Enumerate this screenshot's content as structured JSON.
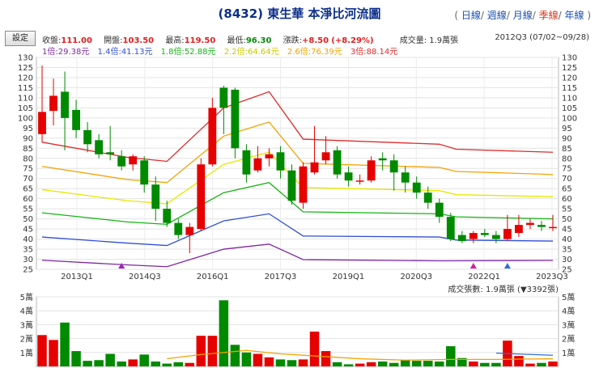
{
  "header": {
    "title": "(8432) 東生華 本淨比河流圖",
    "periods": [
      "日線",
      "週線",
      "月線",
      "季線",
      "年線"
    ],
    "active_period": "季線",
    "settings_label": "設定",
    "quote": {
      "close_label": "收盤:",
      "close": "111.00",
      "open_label": "開盤:",
      "open": "103.50",
      "high_label": "最高:",
      "high": "119.50",
      "low_label": "最低:",
      "low": "96.30",
      "change_label": "漲跌:",
      "change": "+8.50",
      "change_pct": "(+8.29%)",
      "volume_label": "成交量:",
      "volume": "1.9萬張"
    },
    "period_text": "2012Q3 (07/02~09/28)"
  },
  "colors": {
    "up": "#e60000",
    "down": "#008a00",
    "title": "#0c2f8a",
    "bands": [
      "#7d27a3",
      "#2f4fd6",
      "#13b513",
      "#e8e800",
      "#f5a200",
      "#e02b2b"
    ]
  },
  "chart_data": [
    {
      "type": "candlestick",
      "title": "本淨比河流圖",
      "x_tick_labels": [
        "2013Q1",
        "2014Q3",
        "2016Q1",
        "2017Q3",
        "2019Q1",
        "2020Q3",
        "2022Q1",
        "2023Q3"
      ],
      "y_ticks": [
        25,
        30,
        35,
        40,
        45,
        50,
        55,
        60,
        65,
        70,
        75,
        80,
        85,
        90,
        95,
        100,
        105,
        110,
        115,
        120,
        125,
        130
      ],
      "ylim": [
        25,
        130
      ],
      "band_legend": [
        "1倍:29.38元",
        "1.4倍:41.13元",
        "1.8倍:52.88元",
        "2.2倍:64.64元",
        "2.6倍:76.39元",
        "3倍:88.14元"
      ],
      "candles": [
        {
          "o": 92,
          "c": 103,
          "h": 126,
          "l": 88
        },
        {
          "o": 103.5,
          "c": 111,
          "h": 119.5,
          "l": 96.3
        },
        {
          "o": 113,
          "c": 100,
          "h": 123,
          "l": 84
        },
        {
          "o": 104,
          "c": 94,
          "h": 109,
          "l": 90
        },
        {
          "o": 94,
          "c": 87,
          "h": 98,
          "l": 83
        },
        {
          "o": 89,
          "c": 82,
          "h": 92,
          "l": 80
        },
        {
          "o": 83,
          "c": 82,
          "h": 96,
          "l": 79
        },
        {
          "o": 81,
          "c": 76,
          "h": 84,
          "l": 74
        },
        {
          "o": 77,
          "c": 81,
          "h": 82,
          "l": 74
        },
        {
          "o": 79,
          "c": 67,
          "h": 81,
          "l": 63
        },
        {
          "o": 67,
          "c": 55,
          "h": 71,
          "l": 49
        },
        {
          "o": 55,
          "c": 48,
          "h": 59,
          "l": 46
        },
        {
          "o": 48,
          "c": 42,
          "h": 50,
          "l": 40
        },
        {
          "o": 42,
          "c": 46,
          "h": 48,
          "l": 33
        },
        {
          "o": 45,
          "c": 77,
          "h": 80,
          "l": 44
        },
        {
          "o": 77,
          "c": 105,
          "h": 110,
          "l": 76
        },
        {
          "o": 115,
          "c": 105,
          "h": 116,
          "l": 92
        },
        {
          "o": 114,
          "c": 85,
          "h": 115,
          "l": 80
        },
        {
          "o": 84,
          "c": 72,
          "h": 87,
          "l": 68
        },
        {
          "o": 74,
          "c": 80,
          "h": 86,
          "l": 73
        },
        {
          "o": 80,
          "c": 82,
          "h": 85,
          "l": 76
        },
        {
          "o": 83,
          "c": 74,
          "h": 86,
          "l": 70
        },
        {
          "o": 74,
          "c": 59,
          "h": 77,
          "l": 57
        },
        {
          "o": 58,
          "c": 76,
          "h": 78,
          "l": 55
        },
        {
          "o": 73,
          "c": 78,
          "h": 96,
          "l": 72
        },
        {
          "o": 79,
          "c": 83,
          "h": 91,
          "l": 77
        },
        {
          "o": 84,
          "c": 72,
          "h": 86,
          "l": 70
        },
        {
          "o": 73,
          "c": 69,
          "h": 76,
          "l": 66
        },
        {
          "o": 69,
          "c": 69,
          "h": 72,
          "l": 67
        },
        {
          "o": 69,
          "c": 79,
          "h": 81,
          "l": 68
        },
        {
          "o": 80,
          "c": 79,
          "h": 83,
          "l": 74
        },
        {
          "o": 79,
          "c": 73,
          "h": 82,
          "l": 64
        },
        {
          "o": 73,
          "c": 68,
          "h": 76,
          "l": 63
        },
        {
          "o": 68,
          "c": 63,
          "h": 71,
          "l": 60
        },
        {
          "o": 63,
          "c": 58,
          "h": 66,
          "l": 55
        },
        {
          "o": 58,
          "c": 51,
          "h": 60,
          "l": 48
        },
        {
          "o": 51,
          "c": 40,
          "h": 53,
          "l": 39
        },
        {
          "o": 42,
          "c": 39,
          "h": 44,
          "l": 38
        },
        {
          "o": 40,
          "c": 43,
          "h": 44,
          "l": 38
        },
        {
          "o": 43,
          "c": 42,
          "h": 45,
          "l": 41
        },
        {
          "o": 42,
          "c": 40,
          "h": 44,
          "l": 38
        },
        {
          "o": 40,
          "c": 45,
          "h": 52,
          "l": 39
        },
        {
          "o": 43,
          "c": 47,
          "h": 52,
          "l": 41
        },
        {
          "o": 47,
          "c": 48,
          "h": 50,
          "l": 45
        },
        {
          "o": 47,
          "c": 46,
          "h": 49,
          "l": 44
        },
        {
          "o": 46,
          "c": 46,
          "h": 52,
          "l": 44
        }
      ],
      "bands": [
        {
          "multiple": "1倍",
          "points": [
            [
              0,
              29.5
            ],
            [
              7.5,
              27.2
            ],
            [
              11,
              26.3
            ],
            [
              16,
              35
            ],
            [
              20,
              37.5
            ],
            [
              23,
              29.8
            ],
            [
              35,
              29.2
            ],
            [
              45,
              29.4
            ]
          ]
        },
        {
          "multiple": "1.4倍",
          "points": [
            [
              0,
              41
            ],
            [
              7.5,
              38
            ],
            [
              11,
              36.8
            ],
            [
              16,
              49
            ],
            [
              20,
              52.5
            ],
            [
              23,
              41.5
            ],
            [
              35,
              41
            ],
            [
              36.5,
              39.5
            ],
            [
              45,
              39
            ]
          ]
        },
        {
          "multiple": "1.8倍",
          "points": [
            [
              0,
              53
            ],
            [
              7.5,
              48.5
            ],
            [
              11,
              47.3
            ],
            [
              16,
              63
            ],
            [
              20,
              68
            ],
            [
              23,
              53.5
            ],
            [
              35,
              52.5
            ],
            [
              36.5,
              51
            ],
            [
              45,
              50
            ]
          ]
        },
        {
          "multiple": "2.2倍",
          "points": [
            [
              0,
              64.5
            ],
            [
              7.5,
              59
            ],
            [
              11,
              57.5
            ],
            [
              16,
              77
            ],
            [
              20,
              83
            ],
            [
              23,
              65.5
            ],
            [
              35,
              64
            ],
            [
              36.5,
              62
            ],
            [
              45,
              61
            ]
          ]
        },
        {
          "multiple": "2.6倍",
          "points": [
            [
              0,
              76
            ],
            [
              7.5,
              69.5
            ],
            [
              11,
              68
            ],
            [
              16,
              91
            ],
            [
              20,
              98
            ],
            [
              23,
              77.5
            ],
            [
              35,
              75.5
            ],
            [
              36.5,
              73.5
            ],
            [
              45,
              72
            ]
          ]
        },
        {
          "multiple": "3倍",
          "points": [
            [
              0,
              88
            ],
            [
              7.5,
              80.5
            ],
            [
              11,
              78.5
            ],
            [
              16,
              105
            ],
            [
              20,
              113
            ],
            [
              23,
              89.5
            ],
            [
              35,
              87
            ],
            [
              36.5,
              84.5
            ],
            [
              45,
              83
            ]
          ]
        }
      ],
      "markers": [
        {
          "index": 7,
          "color": "#a020c0"
        },
        {
          "index": 38,
          "color": "#d020a0"
        },
        {
          "index": 41,
          "color": "#2f6fd6"
        }
      ]
    },
    {
      "type": "bar",
      "title": "成交張數",
      "info_label": "成交張數: 1.9萬張",
      "info_change": "(▼3392張)",
      "y_tick_labels": [
        "1萬",
        "2萬",
        "3萬",
        "4萬",
        "5萬"
      ],
      "ylim": [
        0,
        5
      ],
      "volumes": [
        2.25,
        1.9,
        3.15,
        1.1,
        0.4,
        0.45,
        0.9,
        0.35,
        0.5,
        0.85,
        0.35,
        0.2,
        0.3,
        0.25,
        2.2,
        2.2,
        4.75,
        1.55,
        1.0,
        0.9,
        0.65,
        0.5,
        0.45,
        0.5,
        2.5,
        1.1,
        0.3,
        0.15,
        0.2,
        0.3,
        0.35,
        0.25,
        0.45,
        0.4,
        0.4,
        0.35,
        1.45,
        0.6,
        0.35,
        0.25,
        0.25,
        1.85,
        0.75,
        0.2,
        0.25,
        0.35
      ],
      "ma_orange": [
        [
          11,
          0.55
        ],
        [
          14,
          0.85
        ],
        [
          18,
          1.15
        ],
        [
          21,
          0.9
        ],
        [
          24,
          0.75
        ],
        [
          28,
          0.55
        ],
        [
          32,
          0.45
        ],
        [
          36,
          0.5
        ],
        [
          40,
          0.5
        ],
        [
          45,
          0.55
        ]
      ],
      "ma_blue": [
        [
          40,
          0.95
        ],
        [
          45,
          0.8
        ]
      ]
    }
  ]
}
